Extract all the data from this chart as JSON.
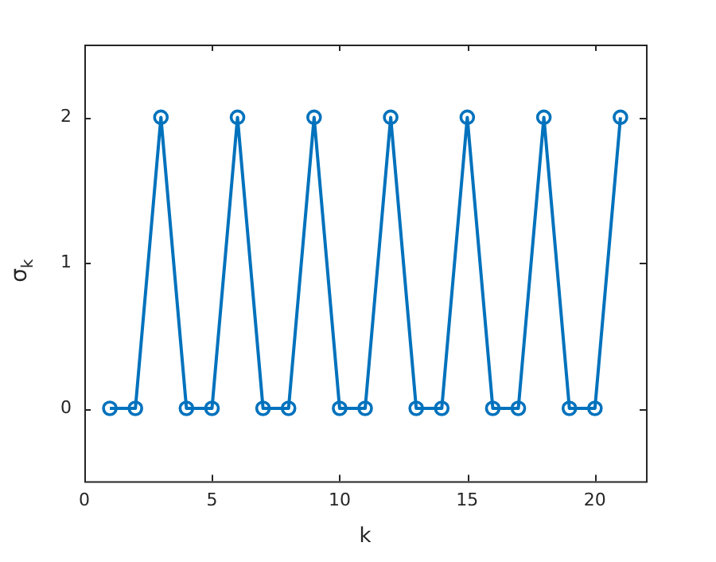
{
  "chart_data": {
    "type": "line",
    "xlabel": "k",
    "ylabel": "σ$_{k}$",
    "x": [
      1,
      2,
      3,
      4,
      5,
      6,
      7,
      8,
      9,
      10,
      11,
      12,
      13,
      14,
      15,
      16,
      17,
      18,
      19,
      20,
      21
    ],
    "series": [
      {
        "color": "#0072bd",
        "values": [
          0,
          0,
          2,
          0,
          0,
          2,
          0,
          0,
          2,
          0,
          0,
          2,
          0,
          0,
          2,
          0,
          0,
          2,
          0,
          0,
          2
        ]
      }
    ],
    "xlim": [
      0,
      22
    ],
    "xticks": [
      0,
      5,
      10,
      15,
      20
    ],
    "ylim": [
      -0.5,
      2.5
    ],
    "yticks": [
      0,
      1,
      2
    ],
    "grid": false,
    "legend": false,
    "marker": "circle",
    "line_style": "solid"
  }
}
